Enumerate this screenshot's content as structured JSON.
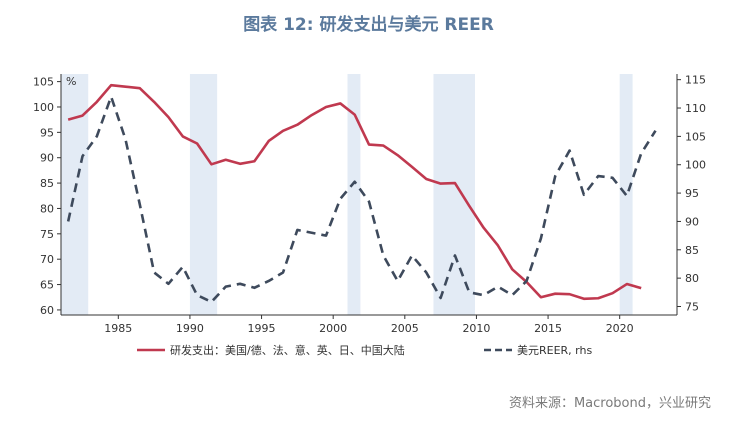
{
  "title": "图表 12: 研发支出与美元 REER",
  "source": "资料来源：Macrobond，兴业研究",
  "chart_data": {
    "type": "line",
    "title": "图表 12: 研发支出与美元 REER",
    "left_unit_label": "%",
    "xlim": [
      1981,
      2024
    ],
    "x_ticks": [
      1985,
      1990,
      1995,
      2000,
      2005,
      2010,
      2015,
      2020
    ],
    "ylim_left": [
      59,
      106.5
    ],
    "y_ticks_left": [
      60,
      65,
      70,
      75,
      80,
      85,
      90,
      95,
      100,
      105
    ],
    "ylim_right": [
      73.5,
      116
    ],
    "y_ticks_right": [
      75,
      80,
      85,
      90,
      95,
      100,
      105,
      110,
      115
    ],
    "shaded_periods": [
      [
        1981,
        1982.9
      ],
      [
        1990,
        1991.9
      ],
      [
        2001,
        2001.9
      ],
      [
        2007,
        2009.9
      ],
      [
        2020,
        2020.9
      ]
    ],
    "shade_color": "#e3ebf5",
    "legend_position": "bottom",
    "series": [
      {
        "name": "研发支出：美国/德、法、意、英、日、中国大陆",
        "axis": "left",
        "style": "solid",
        "color": "#c0394f",
        "x": [
          1981.5,
          1982.5,
          1983.5,
          1984.5,
          1985.5,
          1986.5,
          1987.5,
          1988.5,
          1989.5,
          1990.5,
          1991.5,
          1992.5,
          1993.5,
          1994.5,
          1995.5,
          1996.5,
          1997.5,
          1998.5,
          1999.5,
          2000.5,
          2001.5,
          2002.5,
          2003.5,
          2004.5,
          2005.5,
          2006.5,
          2007.5,
          2008.5,
          2009.5,
          2010.5,
          2011.5,
          2012.5,
          2013.5,
          2014.5,
          2015.5,
          2016.5,
          2017.5,
          2018.5,
          2019.5,
          2020.5,
          2021.5
        ],
        "y": [
          97.5,
          98.3,
          101,
          104.3,
          104,
          103.7,
          101,
          98,
          94.2,
          92.8,
          88.7,
          89.6,
          88.8,
          89.3,
          93.3,
          95.3,
          96.5,
          98.4,
          100,
          100.7,
          98.5,
          92.6,
          92.4,
          90.5,
          88.2,
          85.8,
          84.9,
          85,
          80.5,
          76.2,
          72.7,
          68,
          65.5,
          62.5,
          63.2,
          63.1,
          62.2,
          62.3,
          63.3,
          65.1,
          64.3
        ]
      },
      {
        "name": "美元REER, rhs",
        "axis": "right",
        "style": "dashed",
        "color": "#3e4a5c",
        "x": [
          1981.5,
          1982.5,
          1983.5,
          1984.5,
          1985.5,
          1986.5,
          1987.5,
          1988.5,
          1989.5,
          1990.5,
          1991.5,
          1992.5,
          1993.5,
          1994.5,
          1995.5,
          1996.5,
          1997.5,
          1998.5,
          1999.5,
          2000.5,
          2001.5,
          2002.5,
          2003.5,
          2004.5,
          2005.5,
          2006.5,
          2007.5,
          2008.5,
          2009.5,
          2010.5,
          2011.5,
          2012.5,
          2013.5,
          2014.5,
          2015.5,
          2016.5,
          2017.5,
          2018.5,
          2019.5,
          2020.5,
          2021.5,
          2022.5
        ],
        "y": [
          90,
          101.5,
          105,
          112,
          104.5,
          93,
          81,
          79,
          82,
          77,
          75.8,
          78.5,
          79,
          78.3,
          79.5,
          81,
          88.5,
          88,
          87.5,
          94,
          97,
          93.5,
          84,
          79.5,
          84,
          81,
          76.5,
          84,
          77.5,
          77,
          78.5,
          77,
          79.5,
          87,
          98,
          102.5,
          94.7,
          98,
          97.7,
          94.5,
          102,
          106
        ]
      }
    ]
  }
}
